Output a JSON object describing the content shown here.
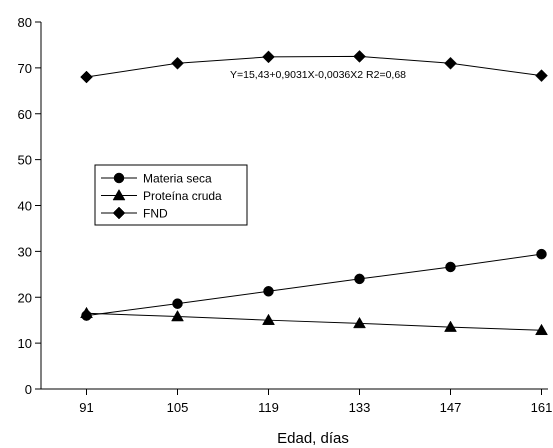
{
  "chart_data": {
    "type": "line",
    "xlabel": "Edad, días",
    "ylabel": "",
    "x": [
      91,
      105,
      119,
      133,
      147,
      161
    ],
    "xticks": [
      "91",
      "105",
      "119",
      "133",
      "147",
      "161"
    ],
    "yticks": [
      "0",
      "10",
      "20",
      "30",
      "40",
      "50",
      "60",
      "70",
      "80"
    ],
    "ylim": [
      0,
      80
    ],
    "grid": false,
    "legend_position": "left-middle",
    "annotation": "Y=15,43+0,9031X-0,0036X2  R2=0,68",
    "series": [
      {
        "name": "Materia seca",
        "marker": "circle",
        "values": [
          16.0,
          18.6,
          21.3,
          24.0,
          26.6,
          29.4
        ]
      },
      {
        "name": "Proteína cruda",
        "marker": "triangle",
        "values": [
          16.5,
          15.8,
          15.0,
          14.3,
          13.5,
          12.8
        ]
      },
      {
        "name": "FND",
        "marker": "diamond",
        "values": [
          68.0,
          71.0,
          72.4,
          72.5,
          71.0,
          68.3
        ]
      }
    ]
  }
}
